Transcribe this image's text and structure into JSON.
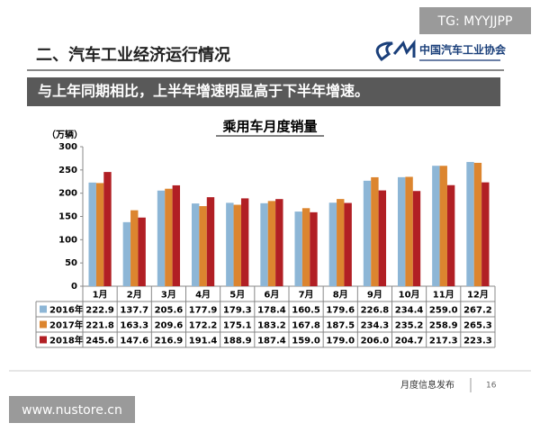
{
  "watermark_top": "TG: MYYJJPP",
  "watermark_bottom": "www.nustore.cn",
  "header": {
    "title": "二、汽车工业经济运行情况",
    "logo": "中国汽车工业协会"
  },
  "banner": "与上年同期相比，上半年增速明显高于下半年增速。",
  "footer": {
    "text": "月度信息发布",
    "page": "16"
  },
  "chart_data": {
    "type": "bar",
    "title": "乘用车月度销量",
    "y_label": "（万辆）",
    "categories": [
      "1月",
      "2月",
      "3月",
      "4月",
      "5月",
      "6月",
      "7月",
      "8月",
      "9月",
      "10月",
      "11月",
      "12月"
    ],
    "series": [
      {
        "name": "2016年",
        "color": "#8db6d6",
        "values": [
          222.9,
          137.7,
          205.6,
          177.9,
          179.3,
          178.4,
          160.5,
          179.6,
          226.8,
          234.4,
          259.0,
          267.2
        ],
        "value_labels": [
          "222.9",
          "137.7",
          "205.6",
          "177.9",
          "179.3",
          "178.4",
          "160.5",
          "179.6",
          "226.8",
          "234.4",
          "259.0",
          "267.2"
        ]
      },
      {
        "name": "2017年",
        "color": "#dc852f",
        "values": [
          221.8,
          163.3,
          209.6,
          172.2,
          175.1,
          183.2,
          167.8,
          187.5,
          234.3,
          235.2,
          258.9,
          265.3
        ],
        "value_labels": [
          "221.8",
          "163.3",
          "209.6",
          "172.2",
          "175.1",
          "183.2",
          "167.8",
          "187.5",
          "234.3",
          "235.2",
          "258.9",
          "265.3"
        ]
      },
      {
        "name": "2018年",
        "color": "#b11f24",
        "values": [
          245.6,
          147.6,
          216.9,
          191.4,
          188.9,
          187.4,
          159.0,
          179.0,
          206.0,
          204.7,
          217.3,
          223.3
        ],
        "value_labels": [
          "245.6",
          "147.6",
          "216.9",
          "191.4",
          "188.9",
          "187.4",
          "159.0",
          "179.0",
          "206.0",
          "204.7",
          "217.3",
          "223.3"
        ]
      }
    ],
    "ylim": [
      0,
      300
    ],
    "yticks": [
      0,
      50,
      100,
      150,
      200,
      250,
      300
    ]
  }
}
